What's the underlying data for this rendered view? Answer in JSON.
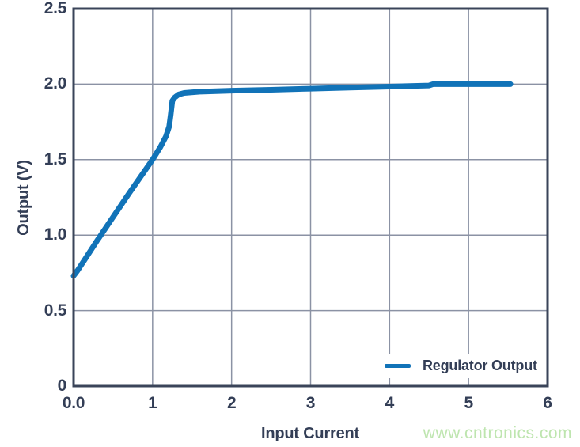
{
  "colors": {
    "background": "#FFFFFF",
    "line_blue": "#1173B8",
    "axis_frame": "#3A4459",
    "grid_gray": "#8B92A4",
    "text_navy": "#333E56",
    "watermark_green": "#BEE5AF"
  },
  "watermark": "www.cntronics.com",
  "chart_data": {
    "type": "line",
    "title": "",
    "xlabel": "Input Current",
    "ylabel": "Output (V)",
    "xlim": [
      0,
      6
    ],
    "ylim": [
      0,
      2.5
    ],
    "grid": true,
    "x_ticks": [
      {
        "value": 0,
        "label": "0.0"
      },
      {
        "value": 1,
        "label": "1"
      },
      {
        "value": 2,
        "label": "2"
      },
      {
        "value": 3,
        "label": "3"
      },
      {
        "value": 4,
        "label": "4"
      },
      {
        "value": 5,
        "label": "5"
      },
      {
        "value": 6,
        "label": "6"
      }
    ],
    "y_ticks": [
      {
        "value": 0,
        "label": "0"
      },
      {
        "value": 0.5,
        "label": "0.5"
      },
      {
        "value": 1.0,
        "label": "1.0"
      },
      {
        "value": 1.5,
        "label": "1.5"
      },
      {
        "value": 2.0,
        "label": "2.0"
      },
      {
        "value": 2.5,
        "label": "2.5"
      }
    ],
    "legend": {
      "position": "lower right",
      "entries": [
        {
          "label": "Regulator Output",
          "color": "#1173B8"
        }
      ]
    },
    "series": [
      {
        "name": "Regulator Output",
        "color": "#1173B8",
        "points": [
          [
            0.0,
            0.73
          ],
          [
            0.05,
            0.765
          ],
          [
            0.15,
            0.845
          ],
          [
            0.3,
            0.965
          ],
          [
            0.5,
            1.12
          ],
          [
            0.7,
            1.275
          ],
          [
            0.9,
            1.425
          ],
          [
            1.0,
            1.5
          ],
          [
            1.1,
            1.585
          ],
          [
            1.17,
            1.655
          ],
          [
            1.21,
            1.72
          ],
          [
            1.23,
            1.8
          ],
          [
            1.25,
            1.89
          ],
          [
            1.28,
            1.912
          ],
          [
            1.33,
            1.932
          ],
          [
            1.4,
            1.942
          ],
          [
            1.6,
            1.95
          ],
          [
            2.0,
            1.957
          ],
          [
            2.5,
            1.963
          ],
          [
            3.0,
            1.97
          ],
          [
            3.5,
            1.977
          ],
          [
            4.0,
            1.984
          ],
          [
            4.5,
            1.991
          ],
          [
            4.55,
            2.0
          ],
          [
            5.0,
            2.0
          ],
          [
            5.53,
            2.0
          ]
        ]
      }
    ]
  }
}
